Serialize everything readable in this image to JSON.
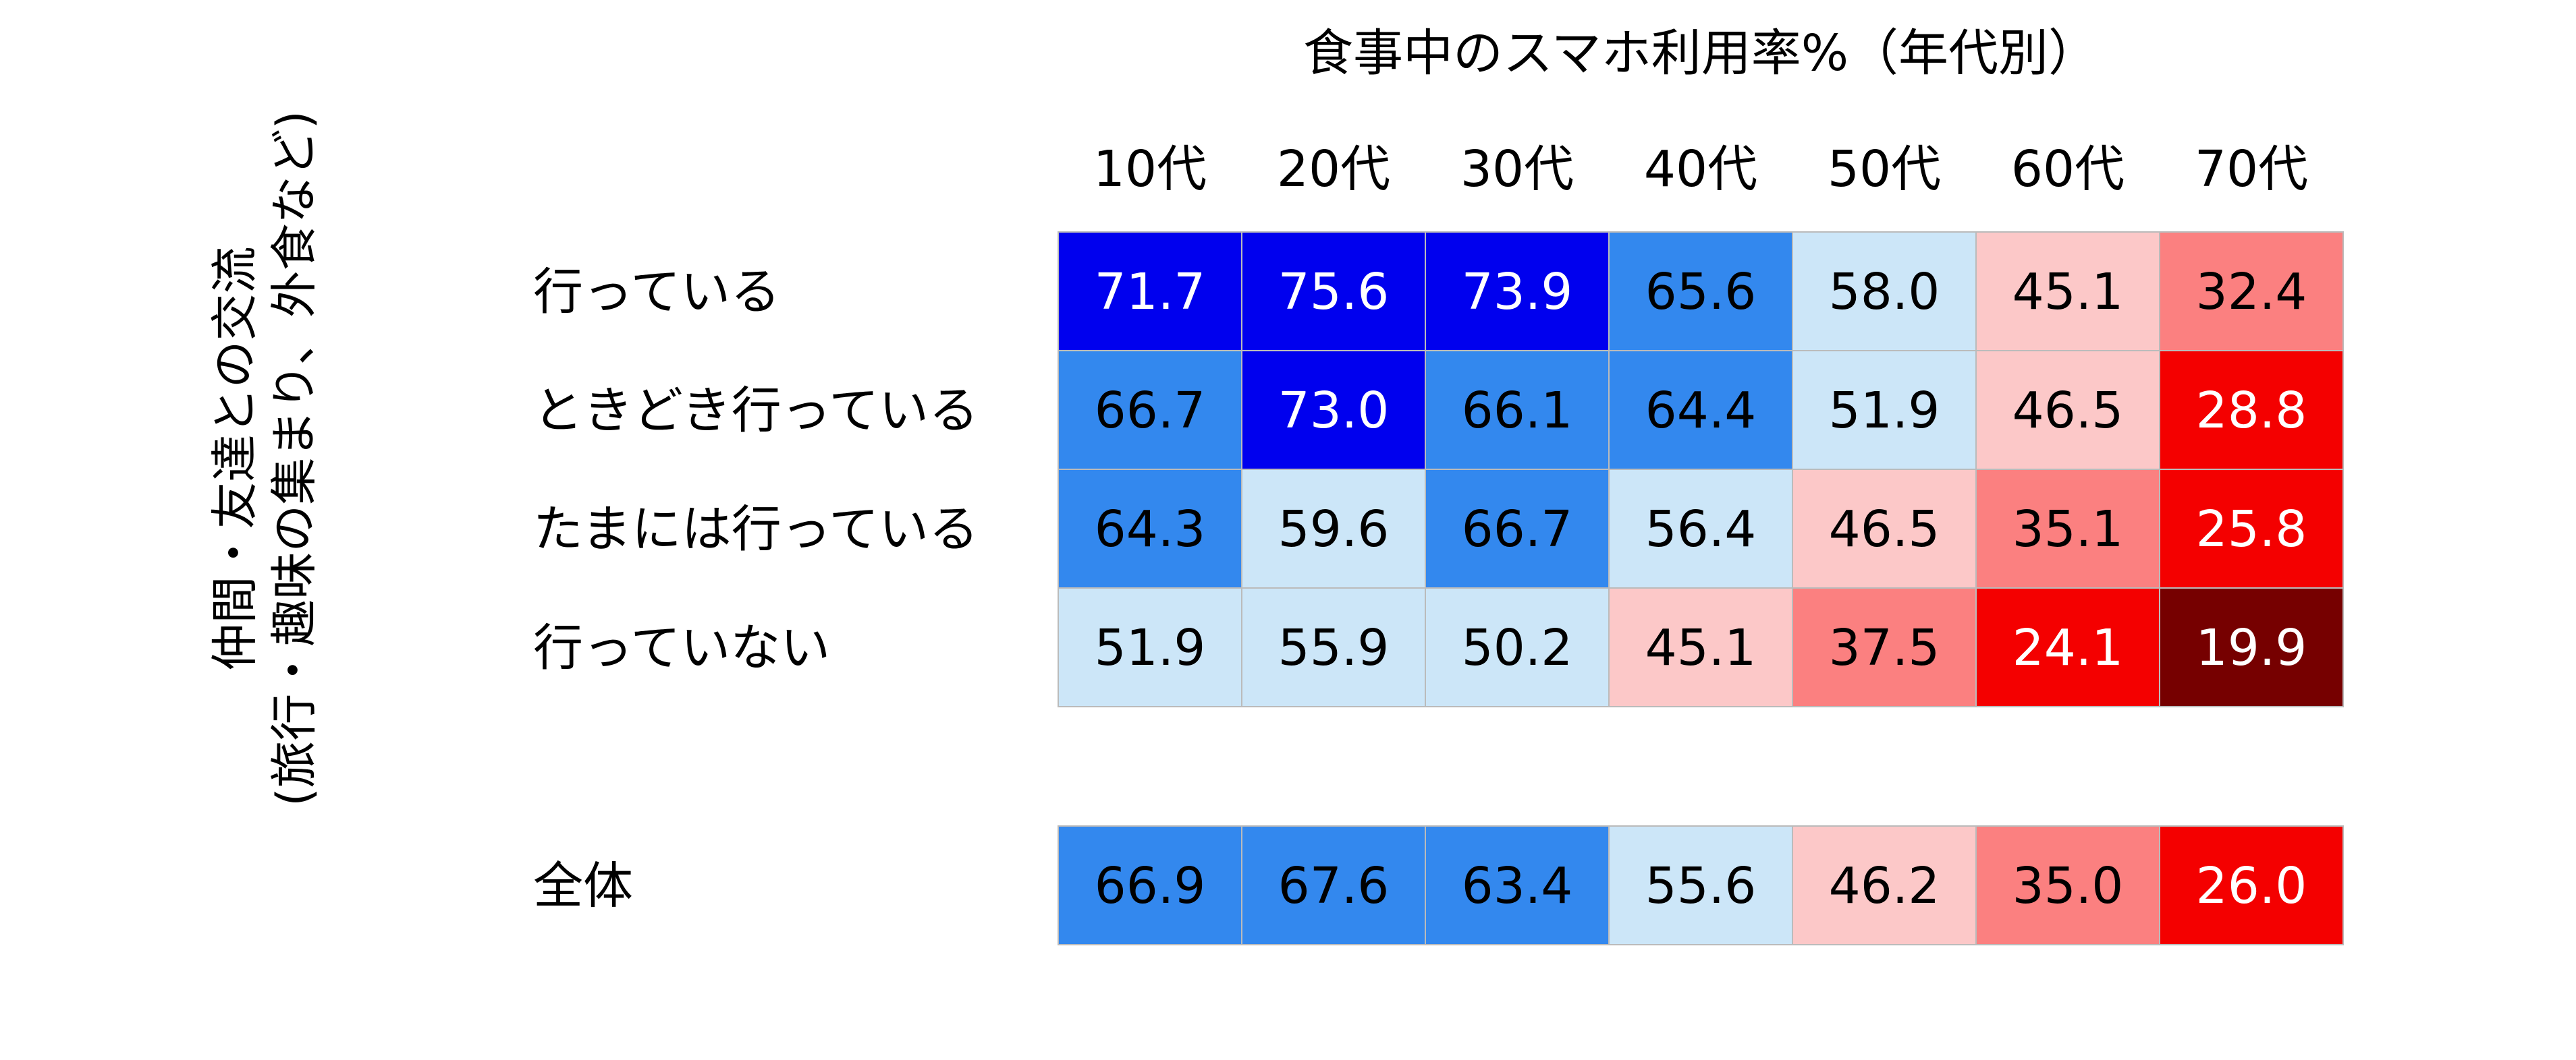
{
  "chart_data": {
    "type": "heatmap",
    "title": "食事中のスマホ利用率%（年代別）",
    "ylabel_lines": [
      "仲間・友達との交流",
      "(旅行・趣味の集まり、外食など)"
    ],
    "columns": [
      "10代",
      "20代",
      "30代",
      "40代",
      "50代",
      "60代",
      "70代"
    ],
    "rows": [
      {
        "label": "行っている",
        "values": [
          71.7,
          75.6,
          73.9,
          65.6,
          58.0,
          45.1,
          32.4
        ]
      },
      {
        "label": "ときどき行っている",
        "values": [
          66.7,
          73.0,
          66.1,
          64.4,
          51.9,
          46.5,
          28.8
        ]
      },
      {
        "label": "たまには行っている",
        "values": [
          64.3,
          59.6,
          66.7,
          56.4,
          46.5,
          35.1,
          25.8
        ]
      },
      {
        "label": "行っていない",
        "values": [
          51.9,
          55.9,
          50.2,
          45.1,
          37.5,
          24.1,
          19.9
        ]
      }
    ],
    "total_row": {
      "label": "全体",
      "values": [
        66.9,
        67.6,
        63.4,
        55.6,
        46.2,
        35.0,
        26.0
      ]
    },
    "color_scale": [
      {
        "min": 70,
        "fill": "#0000ee",
        "text": "#ffffff"
      },
      {
        "min": 60,
        "fill": "#3388ee",
        "text": "#000000"
      },
      {
        "min": 50,
        "fill": "#cce6f8",
        "text": "#000000"
      },
      {
        "min": 40,
        "fill": "#fcc8c8",
        "text": "#000000"
      },
      {
        "min": 30,
        "fill": "#fb8080",
        "text": "#000000"
      },
      {
        "min": 20,
        "fill": "#f40000",
        "text": "#ffffff"
      },
      {
        "min": 0,
        "fill": "#760000",
        "text": "#ffffff"
      }
    ],
    "grid_color": "#bbbbbb"
  }
}
